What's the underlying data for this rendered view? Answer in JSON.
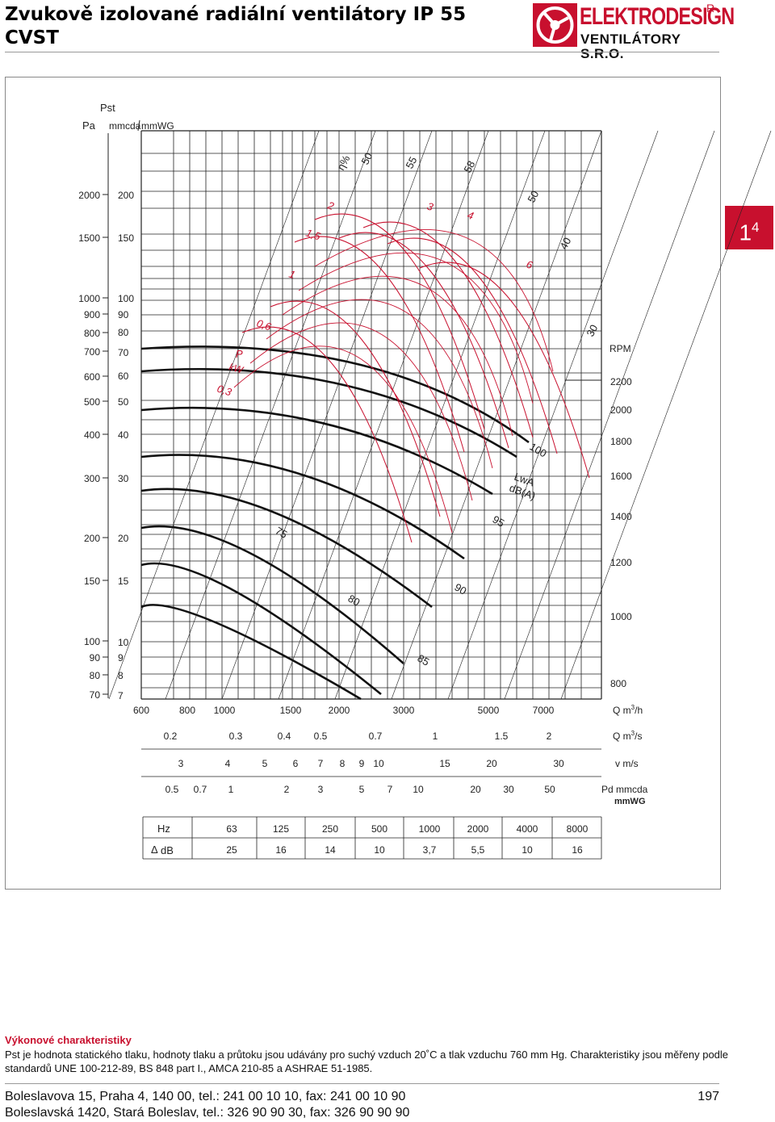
{
  "header": {
    "title_line1": "Zvukově izolované radiální ventilátory IP 55",
    "title_line2": "CVST",
    "logo": {
      "name": "ELEKTRODESIGN",
      "subtitle": "VENTILÁTORY S.R.O.",
      "mark": "R"
    }
  },
  "page_tab": {
    "main": "1",
    "sup": "4"
  },
  "chart": {
    "pressure_header": {
      "pst": "Pst",
      "pa": "Pa",
      "mmcda": "mmcda",
      "mmwg": "mmWG"
    },
    "left_pa_ticks": [
      "2000",
      "1500",
      "1000",
      "900",
      "800",
      "700",
      "600",
      "500",
      "400",
      "300",
      "200",
      "150",
      "100",
      "90",
      "80",
      "70"
    ],
    "left_mm_ticks": [
      "200",
      "150",
      "100",
      "90",
      "80",
      "70",
      "60",
      "50",
      "40",
      "30",
      "20",
      "15",
      "10",
      "9",
      "8",
      "7"
    ],
    "q_m3h_ticks": [
      "600",
      "800",
      "1000",
      "1500",
      "2000",
      "3000",
      "5000",
      "7000"
    ],
    "q_m3h_label": "Q m",
    "q_m3s_ticks": [
      "0.2",
      "0.3",
      "0.4",
      "0.5",
      "0.7",
      "1",
      "1.5",
      "2"
    ],
    "q_m3s_label": "Q m",
    "v_ticks": [
      "3",
      "4",
      "5",
      "6",
      "7",
      "8",
      "9",
      "10",
      "15",
      "20",
      "30"
    ],
    "v_label": "v m/s",
    "pd_ticks": [
      "0.5",
      "0.7",
      "1",
      "2",
      "3",
      "5",
      "7",
      "10",
      "20",
      "30",
      "50"
    ],
    "pd_label": "Pd mmcda",
    "pd_label2": "mmWG",
    "rpm_label": "RPM",
    "rpm_ticks": [
      "2200",
      "2000",
      "1800",
      "1600",
      "1400",
      "1200",
      "1000",
      "800"
    ],
    "eta_label": "η%",
    "eta_values": [
      "50",
      "55",
      "58",
      "50",
      "40",
      "30"
    ],
    "power_label": "P",
    "power_unit": "kW",
    "power_values": [
      "0,3",
      "0,6",
      "1",
      "1,5",
      "2",
      "3",
      "4",
      "6"
    ],
    "lwa_label": "LwA",
    "lwa_unit": "dB(A)",
    "lwa_values": [
      "75",
      "80",
      "85",
      "90",
      "95",
      "100"
    ],
    "colors": {
      "red": "#c8102e",
      "grid": "#222"
    }
  },
  "octave_table": {
    "hz_label": "Hz",
    "db_label": "dB",
    "delta_symbol": "Δ",
    "hz": [
      "63",
      "125",
      "250",
      "500",
      "1000",
      "2000",
      "4000",
      "8000"
    ],
    "db": [
      "25",
      "16",
      "14",
      "10",
      "3,7",
      "5,5",
      "10",
      "16"
    ]
  },
  "description": {
    "title": "Výkonové charakteristiky",
    "text": "Pst je hodnota statického tlaku, hodnoty tlaku a průtoku jsou udávány pro suchý vzduch 20˚C a tlak vzduchu 760 mm Hg. Charakteristiky jsou měřeny podle standardů UNE 100-212-89, BS 848 part I., AMCA 210-85 a ASHRAE 51-1985."
  },
  "footer": {
    "line1": "Boleslavova 15, Praha 4, 140 00, tel.: 241 00 10 10, fax: 241 00 10 90",
    "line2": "Boleslavská 1420, Stará Boleslav, tel.: 326 90 90 30, fax: 326 90 90 90",
    "page_number": "197"
  }
}
